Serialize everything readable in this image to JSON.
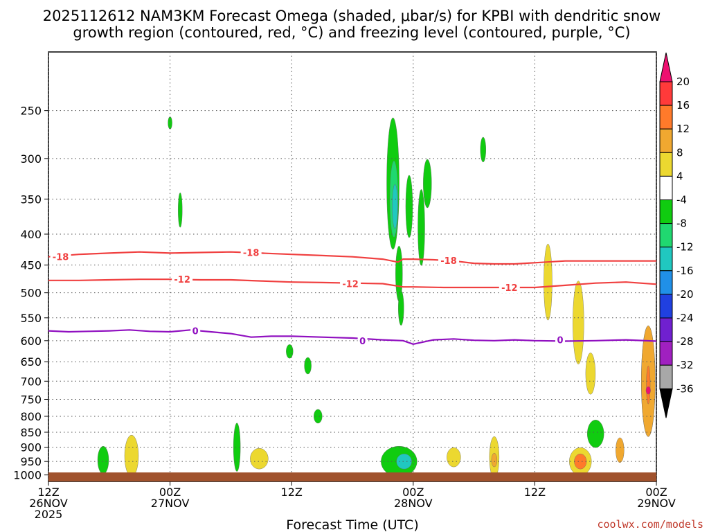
{
  "chart_data": {
    "type": "heatmap",
    "title_line1": "2025112612 NAM3KM Forecast Omega (shaded, μbar/s) for KPBI with dendritic snow",
    "title_line2": "growth region (contoured, red, °C) and freezing level (contoured, purple, °C)",
    "xlabel": "Forecast Time (UTC)",
    "credit": "coolwx.com/models",
    "y_axis": {
      "scale": "log-pressure",
      "range_hPa": [
        1025,
        200
      ],
      "ticks": [
        250,
        300,
        350,
        400,
        450,
        500,
        550,
        600,
        650,
        700,
        750,
        800,
        850,
        900,
        950,
        1000
      ]
    },
    "x_axis": {
      "range_hours": [
        0,
        60
      ],
      "ticks": [
        {
          "h": 0,
          "l1": "12Z",
          "l2": "26NOV",
          "l3": "2025"
        },
        {
          "h": 12,
          "l1": "00Z",
          "l2": "27NOV",
          "l3": ""
        },
        {
          "h": 24,
          "l1": "12Z",
          "l2": "",
          "l3": ""
        },
        {
          "h": 36,
          "l1": "00Z",
          "l2": "28NOV",
          "l3": ""
        },
        {
          "h": 48,
          "l1": "12Z",
          "l2": "",
          "l3": ""
        },
        {
          "h": 60,
          "l1": "00Z",
          "l2": "29NOV",
          "l3": ""
        }
      ]
    },
    "colorbar": {
      "labels": [
        "20",
        "16",
        "12",
        "8",
        "4",
        "-4",
        "-8",
        "-12",
        "-16",
        "-20",
        "-24",
        "-28",
        "-32",
        "-36"
      ],
      "colors": [
        "#ee1070",
        "#ff3a3a",
        "#ff7a2a",
        "#f0a830",
        "#ecd830",
        "#ffffff",
        "#10cc10",
        "#20d870",
        "#20c8c0",
        "#2090e8",
        "#2040e0",
        "#7020d0",
        "#a020c0",
        "#a8a8a8",
        "#000000"
      ]
    },
    "contours": [
      {
        "name": "-18",
        "color": "#f04040",
        "points": [
          [
            0,
            436
          ],
          [
            3,
            432
          ],
          [
            6,
            430
          ],
          [
            9,
            428
          ],
          [
            12,
            430
          ],
          [
            15,
            429
          ],
          [
            18,
            428
          ],
          [
            21,
            430
          ],
          [
            24,
            432
          ],
          [
            27,
            434
          ],
          [
            30,
            436
          ],
          [
            33,
            440
          ],
          [
            34.5,
            445
          ],
          [
            35,
            440
          ],
          [
            36,
            440
          ],
          [
            38,
            441
          ],
          [
            40,
            443
          ],
          [
            42,
            447
          ],
          [
            44,
            448
          ],
          [
            46,
            448
          ],
          [
            48,
            446
          ],
          [
            51,
            443
          ],
          [
            54,
            443
          ],
          [
            57,
            443
          ],
          [
            60,
            443
          ]
        ],
        "labels": [
          [
            1.2,
            436
          ],
          [
            20,
            429
          ],
          [
            39.5,
            442
          ]
        ]
      },
      {
        "name": "-12",
        "color": "#f04040",
        "points": [
          [
            0,
            477
          ],
          [
            3,
            477
          ],
          [
            6,
            476
          ],
          [
            9,
            475
          ],
          [
            12,
            475
          ],
          [
            15,
            476
          ],
          [
            18,
            476
          ],
          [
            21,
            478
          ],
          [
            24,
            480
          ],
          [
            27,
            481
          ],
          [
            30,
            482
          ],
          [
            33,
            483
          ],
          [
            35,
            489
          ],
          [
            36,
            489
          ],
          [
            39,
            490
          ],
          [
            42,
            490
          ],
          [
            45,
            490
          ],
          [
            48,
            490
          ],
          [
            51,
            486
          ],
          [
            54,
            482
          ],
          [
            57,
            480
          ],
          [
            60,
            484
          ]
        ],
        "labels": [
          [
            13.2,
            475
          ],
          [
            29.8,
            483
          ],
          [
            45.5,
            490
          ]
        ]
      },
      {
        "name": "0",
        "color": "#9010c0",
        "points": [
          [
            0,
            578
          ],
          [
            2,
            580
          ],
          [
            4,
            579
          ],
          [
            6,
            578
          ],
          [
            8,
            576
          ],
          [
            10,
            579
          ],
          [
            12,
            580
          ],
          [
            14,
            576
          ],
          [
            16,
            580
          ],
          [
            18,
            584
          ],
          [
            20,
            592
          ],
          [
            22,
            590
          ],
          [
            24,
            590
          ],
          [
            27,
            592
          ],
          [
            30,
            594
          ],
          [
            33,
            598
          ],
          [
            35,
            600
          ],
          [
            36,
            608
          ],
          [
            38,
            598
          ],
          [
            40,
            596
          ],
          [
            42,
            599
          ],
          [
            44,
            600
          ],
          [
            46,
            598
          ],
          [
            48,
            600
          ],
          [
            51,
            601
          ],
          [
            54,
            600
          ],
          [
            57,
            598
          ],
          [
            60,
            601
          ]
        ],
        "labels": [
          [
            14.5,
            578
          ],
          [
            31,
            600
          ],
          [
            50.5,
            598
          ]
        ]
      }
    ],
    "omega_cells": [
      {
        "t": 34,
        "p": 330,
        "color": "#10cc10"
      },
      {
        "t": 34.1,
        "p": 350,
        "color": "#20d870"
      },
      {
        "t": 34.2,
        "p": 360,
        "color": "#20c8c0"
      },
      {
        "t": 34.6,
        "p": 465,
        "color": "#10cc10"
      },
      {
        "t": 34.8,
        "p": 530,
        "color": "#10cc10"
      },
      {
        "t": 35.6,
        "p": 360,
        "color": "#10cc10"
      },
      {
        "t": 36.8,
        "p": 390,
        "color": "#10cc10"
      },
      {
        "t": 37.4,
        "p": 330,
        "color": "#10cc10"
      },
      {
        "t": 42.9,
        "p": 290,
        "color": "#10cc10"
      },
      {
        "t": 13,
        "p": 365,
        "color": "#10cc10"
      },
      {
        "t": 12,
        "p": 262,
        "color": "#10cc10"
      },
      {
        "t": 34.6,
        "p": 950,
        "color": "#10cc10"
      },
      {
        "t": 35.1,
        "p": 950,
        "color": "#20c8c0"
      },
      {
        "t": 5.4,
        "p": 945,
        "color": "#10cc10"
      },
      {
        "t": 18.6,
        "p": 900,
        "color": "#10cc10"
      },
      {
        "t": 49.3,
        "p": 480,
        "color": "#ecd830"
      },
      {
        "t": 52.3,
        "p": 560,
        "color": "#ecd830"
      },
      {
        "t": 53.5,
        "p": 680,
        "color": "#ecd830"
      },
      {
        "t": 59.2,
        "p": 700,
        "color": "#ecd830"
      },
      {
        "t": 59.2,
        "p": 700,
        "color": "#f0a830"
      },
      {
        "t": 59.2,
        "p": 710,
        "color": "#ff7a2a"
      },
      {
        "t": 59.2,
        "p": 725,
        "color": "#ee1070"
      },
      {
        "t": 52.5,
        "p": 950,
        "color": "#ecd830"
      },
      {
        "t": 52.5,
        "p": 950,
        "color": "#ff7a2a"
      },
      {
        "t": 44,
        "p": 935,
        "color": "#ecd830"
      },
      {
        "t": 44,
        "p": 945,
        "color": "#f0a830"
      },
      {
        "t": 56.4,
        "p": 910,
        "color": "#f0a830"
      },
      {
        "t": 8.2,
        "p": 930,
        "color": "#ecd830"
      },
      {
        "t": 20.8,
        "p": 940,
        "color": "#ecd830"
      },
      {
        "t": 40,
        "p": 935,
        "color": "#ecd830"
      },
      {
        "t": 54,
        "p": 855,
        "color": "#10cc10"
      },
      {
        "t": 26.6,
        "p": 800,
        "color": "#10cc10"
      },
      {
        "t": 25.6,
        "p": 660,
        "color": "#10cc10"
      },
      {
        "t": 23.8,
        "p": 625,
        "color": "#10cc10"
      }
    ]
  }
}
